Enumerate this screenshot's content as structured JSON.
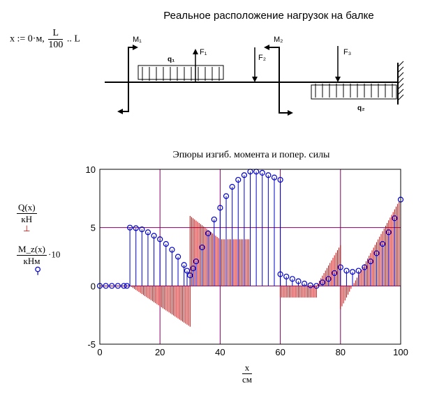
{
  "beam_diagram": {
    "title": "Реальное расположение нагрузок на балке",
    "labels": {
      "M1": "M₁",
      "q1": "q₁",
      "F1": "F₁",
      "F2": "F₂",
      "M2": "M₂",
      "F3": "F₃",
      "q2": "q₂"
    }
  },
  "formula": {
    "lhs": "x := 0·м,",
    "frac_num": "L",
    "frac_den": "100",
    "rhs": ".. L"
  },
  "ylabels": {
    "q_num": "Q(x)",
    "q_den": "кН",
    "m_num": "M_z(x)",
    "m_den": "кНм",
    "m_factor": "·10"
  },
  "xlabel": {
    "num": "x",
    "den": "см"
  },
  "chart_data": {
    "type": "stem",
    "title": "Эпюры изгиб. момента и попер. силы",
    "xlim": [
      0,
      100
    ],
    "ylim": [
      -5,
      10
    ],
    "xticks": [
      0,
      20,
      40,
      60,
      80,
      100
    ],
    "yticks": [
      -5,
      0,
      5,
      10
    ],
    "grid": true,
    "colors": {
      "shear": "#cc0000",
      "moment": "#0000cc",
      "grid": "#800060"
    },
    "series": [
      {
        "key": "Q",
        "style": "red-stems",
        "segments": [
          {
            "x": [
              0,
              10
            ],
            "y": [
              0,
              0
            ]
          },
          {
            "x": [
              10,
              30
            ],
            "y": [
              0,
              -3.5
            ]
          },
          {
            "x": [
              30,
              40
            ],
            "y": [
              6,
              4
            ]
          },
          {
            "x": [
              40,
              50
            ],
            "y": [
              4,
              4
            ]
          },
          {
            "x": [
              50,
              60
            ],
            "y": [
              0,
              0
            ]
          },
          {
            "x": [
              60,
              72
            ],
            "y": [
              -1,
              -1
            ]
          },
          {
            "x": [
              72,
              80
            ],
            "y": [
              0,
              3.5
            ]
          },
          {
            "x": [
              80,
              84
            ],
            "y": [
              -2,
              0
            ]
          },
          {
            "x": [
              84,
              100
            ],
            "y": [
              0,
              7.5
            ]
          }
        ]
      },
      {
        "key": "Mz",
        "style": "blue-circles",
        "points": [
          [
            0,
            0
          ],
          [
            2,
            0
          ],
          [
            4,
            0
          ],
          [
            6,
            0
          ],
          [
            8,
            0
          ],
          [
            9,
            0
          ],
          [
            10,
            5
          ],
          [
            12,
            4.95
          ],
          [
            14,
            4.85
          ],
          [
            16,
            4.6
          ],
          [
            18,
            4.3
          ],
          [
            20,
            4
          ],
          [
            22,
            3.6
          ],
          [
            24,
            3.1
          ],
          [
            26,
            2.5
          ],
          [
            28,
            1.8
          ],
          [
            29,
            1.3
          ],
          [
            30,
            0.9
          ],
          [
            31,
            1.5
          ],
          [
            32,
            2.1
          ],
          [
            34,
            3.3
          ],
          [
            36,
            4.5
          ],
          [
            38,
            5.7
          ],
          [
            40,
            6.7
          ],
          [
            42,
            7.7
          ],
          [
            44,
            8.5
          ],
          [
            46,
            9.1
          ],
          [
            48,
            9.5
          ],
          [
            50,
            9.8
          ],
          [
            52,
            9.8
          ],
          [
            54,
            9.7
          ],
          [
            56,
            9.5
          ],
          [
            58,
            9.3
          ],
          [
            60,
            9.1
          ],
          [
            60,
            1
          ],
          [
            62,
            0.8
          ],
          [
            64,
            0.6
          ],
          [
            66,
            0.4
          ],
          [
            68,
            0.2
          ],
          [
            70,
            0.05
          ],
          [
            72,
            0
          ],
          [
            74,
            0.3
          ],
          [
            76,
            0.6
          ],
          [
            78,
            1.1
          ],
          [
            80,
            1.6
          ],
          [
            82,
            1.3
          ],
          [
            84,
            1.2
          ],
          [
            86,
            1.3
          ],
          [
            88,
            1.6
          ],
          [
            90,
            2.1
          ],
          [
            92,
            2.8
          ],
          [
            94,
            3.6
          ],
          [
            96,
            4.6
          ],
          [
            98,
            5.8
          ],
          [
            100,
            7.4
          ]
        ]
      }
    ]
  }
}
